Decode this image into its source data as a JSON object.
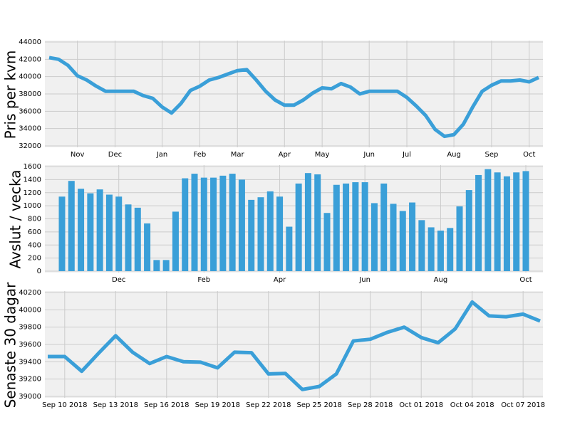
{
  "chart_data": [
    {
      "type": "line",
      "ylabel": "Pris per kvm",
      "color": "#3a9fd8",
      "categories": [
        null,
        null,
        null,
        "Nov",
        null,
        null,
        null,
        "Dec",
        null,
        null,
        null,
        null,
        "Jan",
        null,
        null,
        null,
        "Feb",
        null,
        null,
        null,
        "Mar",
        null,
        null,
        null,
        null,
        "Apr",
        null,
        null,
        null,
        "May",
        null,
        null,
        null,
        null,
        "Jun",
        null,
        null,
        null,
        "Jul",
        null,
        null,
        null,
        null,
        "Aug",
        null,
        null,
        null,
        "Sep",
        null,
        null,
        null,
        "Oct",
        null
      ],
      "values": [
        42200,
        42000,
        41300,
        40100,
        39600,
        38900,
        38300,
        38300,
        38300,
        38300,
        37800,
        37500,
        36500,
        35800,
        36900,
        38400,
        38900,
        39600,
        39900,
        40300,
        40700,
        40800,
        39600,
        38300,
        37300,
        36700,
        36700,
        37300,
        38100,
        38700,
        38600,
        39200,
        38800,
        38000,
        38300,
        38300,
        38300,
        38300,
        37600,
        36600,
        35500,
        33900,
        33100,
        33300,
        34500,
        36500,
        38300,
        39000,
        39500,
        39500,
        39600,
        39400,
        39900
      ],
      "ylim": [
        32000,
        44000
      ],
      "yticks": [
        32000,
        34000,
        36000,
        38000,
        40000,
        42000,
        44000
      ],
      "grid": true
    },
    {
      "type": "bar",
      "ylabel": "Avslut / vecka",
      "color": "#3a9fd8",
      "categories": [
        null,
        null,
        null,
        null,
        null,
        null,
        "Dec",
        null,
        null,
        null,
        null,
        null,
        null,
        null,
        null,
        "Feb",
        null,
        null,
        null,
        null,
        null,
        null,
        null,
        "Apr",
        null,
        null,
        null,
        null,
        null,
        null,
        null,
        null,
        "Jun",
        null,
        null,
        null,
        null,
        null,
        null,
        null,
        "Aug",
        null,
        null,
        null,
        null,
        null,
        null,
        null,
        null,
        "Oct"
      ],
      "values": [
        1140,
        1380,
        1260,
        1190,
        1250,
        1170,
        1140,
        1020,
        970,
        730,
        170,
        170,
        910,
        1420,
        1490,
        1430,
        1430,
        1460,
        1490,
        1400,
        1090,
        1130,
        1220,
        1140,
        680,
        1340,
        1500,
        1480,
        890,
        1320,
        1340,
        1360,
        1360,
        1040,
        1340,
        1030,
        920,
        1050,
        780,
        670,
        620,
        660,
        990,
        1240,
        1470,
        1560,
        1510,
        1450,
        1510,
        1530
      ],
      "ylim": [
        0,
        1600
      ],
      "yticks": [
        0,
        200,
        400,
        600,
        800,
        1000,
        1200,
        1400,
        1600
      ],
      "grid": true
    },
    {
      "type": "line",
      "ylabel": "Senaste 30 dagar",
      "color": "#3a9fd8",
      "categories": [
        null,
        "Sep 10 2018",
        null,
        null,
        "Sep 13 2018",
        null,
        null,
        "Sep 16 2018",
        null,
        null,
        "Sep 19 2018",
        null,
        null,
        "Sep 22 2018",
        null,
        null,
        "Sep 25 2018",
        null,
        null,
        "Sep 28 2018",
        null,
        null,
        "Oct 01 2018",
        null,
        null,
        "Oct 04 2018",
        null,
        null,
        "Oct 07 2018",
        null
      ],
      "values": [
        39460,
        39460,
        39290,
        39500,
        39700,
        39510,
        39380,
        39460,
        39400,
        39395,
        39330,
        39510,
        39505,
        39260,
        39265,
        39080,
        39115,
        39260,
        39640,
        39660,
        39740,
        39800,
        39680,
        39620,
        39780,
        40090,
        39930,
        39920,
        39950,
        39870
      ],
      "ylim": [
        39000,
        40200
      ],
      "yticks": [
        39000,
        39200,
        39400,
        39600,
        39800,
        40000,
        40200
      ],
      "grid": true
    }
  ]
}
